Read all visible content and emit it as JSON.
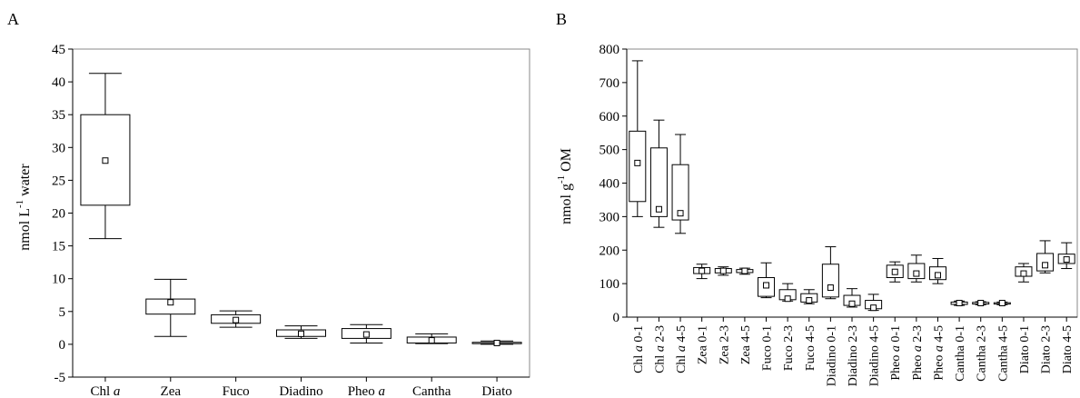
{
  "chart_data": [
    {
      "type": "box",
      "panel_label": "A",
      "ylabel_base": "nmol L",
      "ylabel_sup": "-1",
      "ylabel_rest": " water",
      "ylim": [
        -5,
        45
      ],
      "yticks": [
        -5,
        0,
        5,
        10,
        15,
        20,
        25,
        30,
        35,
        40,
        45
      ],
      "categories": [
        {
          "base": "Chl ",
          "italic": "a",
          "rest": ""
        },
        {
          "base": "Zea",
          "italic": "",
          "rest": ""
        },
        {
          "base": "Fuco",
          "italic": "",
          "rest": ""
        },
        {
          "base": "Diadino",
          "italic": "",
          "rest": ""
        },
        {
          "base": "Pheo ",
          "italic": "a",
          "rest": ""
        },
        {
          "base": "Cantha",
          "italic": "",
          "rest": ""
        },
        {
          "base": "Diato",
          "italic": "",
          "rest": ""
        }
      ],
      "boxes": [
        {
          "median": 28.0,
          "q1": 21.2,
          "q3": 35.0,
          "min": 16.1,
          "max": 41.3
        },
        {
          "median": 6.4,
          "q1": 4.6,
          "q3": 6.9,
          "min": 1.2,
          "max": 9.9
        },
        {
          "median": 3.7,
          "q1": 3.2,
          "q3": 4.5,
          "min": 2.6,
          "max": 5.1
        },
        {
          "median": 1.6,
          "q1": 1.2,
          "q3": 2.2,
          "min": 0.9,
          "max": 2.8
        },
        {
          "median": 1.5,
          "q1": 0.9,
          "q3": 2.4,
          "min": 0.2,
          "max": 3.0
        },
        {
          "median": 0.6,
          "q1": 0.2,
          "q3": 1.1,
          "min": 0.1,
          "max": 1.6
        },
        {
          "median": 0.2,
          "q1": 0.1,
          "q3": 0.3,
          "min": 0.0,
          "max": 0.5
        }
      ]
    },
    {
      "type": "box",
      "panel_label": "B",
      "ylabel_base": "nmol g",
      "ylabel_sup": "-1",
      "ylabel_rest": " OM",
      "ylim": [
        0,
        800
      ],
      "yticks": [
        0,
        100,
        200,
        300,
        400,
        500,
        600,
        700,
        800
      ],
      "categories": [
        {
          "base": "Chl ",
          "italic": "a",
          "rest": " 0-1"
        },
        {
          "base": "Chl ",
          "italic": "a",
          "rest": " 2-3"
        },
        {
          "base": "Chl ",
          "italic": "a",
          "rest": " 4-5"
        },
        {
          "base": "Zea 0-1",
          "italic": "",
          "rest": ""
        },
        {
          "base": "Zea 2-3",
          "italic": "",
          "rest": ""
        },
        {
          "base": "Zea 4-5",
          "italic": "",
          "rest": ""
        },
        {
          "base": "Fuco 0-1",
          "italic": "",
          "rest": ""
        },
        {
          "base": "Fuco 2-3",
          "italic": "",
          "rest": ""
        },
        {
          "base": "Fuco 4-5",
          "italic": "",
          "rest": ""
        },
        {
          "base": "Diadino 0-1",
          "italic": "",
          "rest": ""
        },
        {
          "base": "Diadino 2-3",
          "italic": "",
          "rest": ""
        },
        {
          "base": "Diadino 4-5",
          "italic": "",
          "rest": ""
        },
        {
          "base": "Pheo ",
          "italic": "a",
          "rest": " 0-1"
        },
        {
          "base": "Pheo ",
          "italic": "a",
          "rest": " 2-3"
        },
        {
          "base": "Pheo ",
          "italic": "a",
          "rest": " 4-5"
        },
        {
          "base": "Cantha 0-1",
          "italic": "",
          "rest": ""
        },
        {
          "base": "Cantha 2-3",
          "italic": "",
          "rest": ""
        },
        {
          "base": "Cantha 4-5",
          "italic": "",
          "rest": ""
        },
        {
          "base": "Diato 0-1",
          "italic": "",
          "rest": ""
        },
        {
          "base": "Diato 2-3",
          "italic": "",
          "rest": ""
        },
        {
          "base": "Diato 4-5",
          "italic": "",
          "rest": ""
        }
      ],
      "boxes": [
        {
          "median": 460,
          "q1": 345,
          "q3": 555,
          "min": 300,
          "max": 765
        },
        {
          "median": 322,
          "q1": 300,
          "q3": 505,
          "min": 268,
          "max": 588
        },
        {
          "median": 310,
          "q1": 290,
          "q3": 455,
          "min": 250,
          "max": 545
        },
        {
          "median": 138,
          "q1": 130,
          "q3": 148,
          "min": 115,
          "max": 158
        },
        {
          "median": 138,
          "q1": 132,
          "q3": 145,
          "min": 125,
          "max": 150
        },
        {
          "median": 138,
          "q1": 133,
          "q3": 142,
          "min": 128,
          "max": 146
        },
        {
          "median": 95,
          "q1": 62,
          "q3": 118,
          "min": 58,
          "max": 162
        },
        {
          "median": 55,
          "q1": 52,
          "q3": 82,
          "min": 48,
          "max": 100
        },
        {
          "median": 50,
          "q1": 45,
          "q3": 70,
          "min": 40,
          "max": 82
        },
        {
          "median": 88,
          "q1": 60,
          "q3": 158,
          "min": 55,
          "max": 210
        },
        {
          "median": 40,
          "q1": 35,
          "q3": 65,
          "min": 30,
          "max": 85
        },
        {
          "median": 28,
          "q1": 25,
          "q3": 50,
          "min": 20,
          "max": 68
        },
        {
          "median": 135,
          "q1": 118,
          "q3": 155,
          "min": 105,
          "max": 165
        },
        {
          "median": 130,
          "q1": 115,
          "q3": 160,
          "min": 105,
          "max": 185
        },
        {
          "median": 125,
          "q1": 112,
          "q3": 150,
          "min": 100,
          "max": 175
        },
        {
          "median": 42,
          "q1": 38,
          "q3": 45,
          "min": 35,
          "max": 48
        },
        {
          "median": 42,
          "q1": 39,
          "q3": 44,
          "min": 37,
          "max": 46
        },
        {
          "median": 42,
          "q1": 39,
          "q3": 43,
          "min": 37,
          "max": 45
        },
        {
          "median": 130,
          "q1": 122,
          "q3": 150,
          "min": 105,
          "max": 160
        },
        {
          "median": 155,
          "q1": 138,
          "q3": 190,
          "min": 132,
          "max": 228
        },
        {
          "median": 172,
          "q1": 160,
          "q3": 188,
          "min": 145,
          "max": 222
        }
      ]
    }
  ]
}
